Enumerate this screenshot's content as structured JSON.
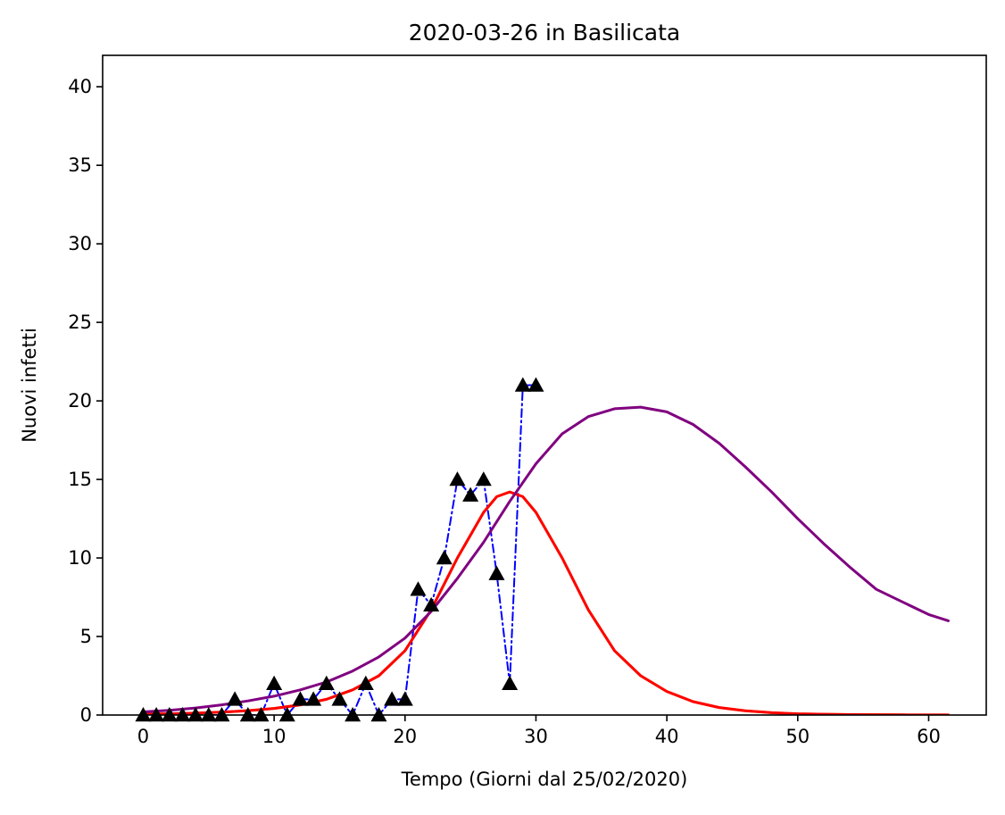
{
  "chart_data": {
    "type": "line",
    "title": "2020-03-26 in Basilicata",
    "xlabel": "Tempo (Giorni dal 25/02/2020)",
    "ylabel": "Nuovi infetti",
    "xlim": [
      -3.1,
      64.4
    ],
    "ylim": [
      0,
      42
    ],
    "xticks": [
      0,
      10,
      20,
      30,
      40,
      50,
      60
    ],
    "yticks": [
      0,
      5,
      10,
      15,
      20,
      25,
      30,
      35,
      40
    ],
    "grid": false,
    "series": [
      {
        "style": "dash-dot with triangle markers",
        "color": "#0000ff",
        "marker_color": "#000000",
        "x": [
          0,
          1,
          2,
          3,
          4,
          5,
          6,
          7,
          8,
          9,
          10,
          11,
          12,
          13,
          14,
          15,
          16,
          17,
          18,
          19,
          20,
          21,
          22,
          23,
          24,
          25,
          26,
          27,
          28,
          29,
          30
        ],
        "y": [
          0,
          0,
          0,
          0,
          0,
          0,
          0,
          1,
          0,
          0,
          2,
          0,
          1,
          1,
          2,
          1,
          0,
          2,
          0,
          1,
          1,
          8,
          7,
          10,
          15,
          14,
          15,
          9,
          2,
          21,
          21
        ]
      },
      {
        "style": "solid",
        "color": "#ff8c00",
        "x": [
          0,
          2,
          4,
          6,
          8,
          10,
          12,
          14,
          16,
          18,
          20,
          22,
          24,
          26,
          27,
          28,
          29,
          30,
          32,
          34,
          36,
          38,
          40,
          42,
          44,
          46,
          48,
          50,
          52,
          54,
          56,
          58,
          60,
          61.5
        ],
        "y": [
          0.05,
          0.08,
          0.12,
          0.18,
          0.28,
          0.42,
          0.65,
          1.0,
          1.6,
          2.5,
          4.1,
          6.7,
          10.0,
          12.9,
          13.9,
          14.2,
          13.9,
          12.9,
          10.0,
          6.7,
          4.1,
          2.5,
          1.5,
          0.85,
          0.48,
          0.27,
          0.15,
          0.08,
          0.05,
          0.03,
          0.02,
          0.01,
          0.005,
          0.003
        ]
      },
      {
        "style": "solid",
        "color": "#ff0000",
        "x": [
          0,
          2,
          4,
          6,
          8,
          10,
          12,
          14,
          16,
          18,
          20,
          22,
          24,
          26,
          27,
          28,
          29,
          30,
          32,
          34,
          36,
          38,
          40,
          42,
          44,
          46,
          48,
          50,
          52,
          54,
          56,
          58,
          60,
          61.5
        ],
        "y": [
          0.05,
          0.08,
          0.12,
          0.18,
          0.28,
          0.42,
          0.65,
          1.0,
          1.6,
          2.5,
          4.1,
          6.7,
          10.0,
          12.9,
          13.9,
          14.2,
          13.9,
          12.9,
          10.0,
          6.7,
          4.1,
          2.5,
          1.5,
          0.85,
          0.48,
          0.27,
          0.15,
          0.08,
          0.05,
          0.03,
          0.02,
          0.01,
          0.005,
          0.003
        ]
      },
      {
        "style": "solid",
        "color": "#800080",
        "x": [
          0,
          2,
          4,
          6,
          8,
          10,
          12,
          14,
          16,
          18,
          20,
          22,
          24,
          26,
          28,
          30,
          32,
          34,
          36,
          38,
          40,
          42,
          44,
          46,
          48,
          50,
          52,
          54,
          56,
          58,
          60,
          61.5
        ],
        "y": [
          0.2,
          0.3,
          0.45,
          0.65,
          0.9,
          1.2,
          1.6,
          2.1,
          2.8,
          3.7,
          4.9,
          6.6,
          8.7,
          11.0,
          13.6,
          16.0,
          17.9,
          19.0,
          19.5,
          19.6,
          19.3,
          18.5,
          17.3,
          15.8,
          14.2,
          12.5,
          10.9,
          9.4,
          8.0,
          7.2,
          6.4,
          6.0
        ]
      }
    ]
  }
}
